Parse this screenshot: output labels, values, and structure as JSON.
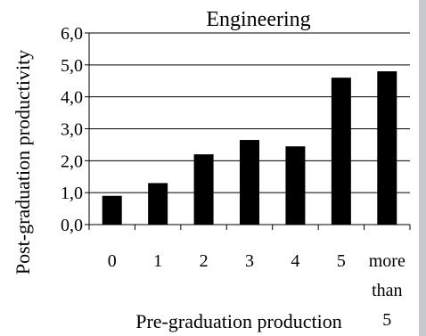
{
  "chart_data": {
    "type": "bar",
    "title": "Engineering",
    "xlabel": "Pre-graduation production",
    "ylabel": "Post-graduation productivity",
    "categories": [
      "0",
      "1",
      "2",
      "3",
      "4",
      "5",
      "more than 5"
    ],
    "category_lines": [
      [
        "0"
      ],
      [
        "1"
      ],
      [
        "2"
      ],
      [
        "3"
      ],
      [
        "4"
      ],
      [
        "5"
      ],
      [
        "more",
        "than",
        "5"
      ]
    ],
    "values": [
      0.9,
      1.3,
      2.2,
      2.65,
      2.45,
      4.6,
      4.8
    ],
    "ylim": [
      0,
      6
    ],
    "yticks": [
      0,
      1,
      2,
      3,
      4,
      5,
      6
    ],
    "ytick_labels": [
      "0,0",
      "1,0",
      "2,0",
      "3,0",
      "4,0",
      "5,0",
      "6,0"
    ],
    "grid": true,
    "bar_color": "#000000",
    "grid_color": "#000000"
  }
}
